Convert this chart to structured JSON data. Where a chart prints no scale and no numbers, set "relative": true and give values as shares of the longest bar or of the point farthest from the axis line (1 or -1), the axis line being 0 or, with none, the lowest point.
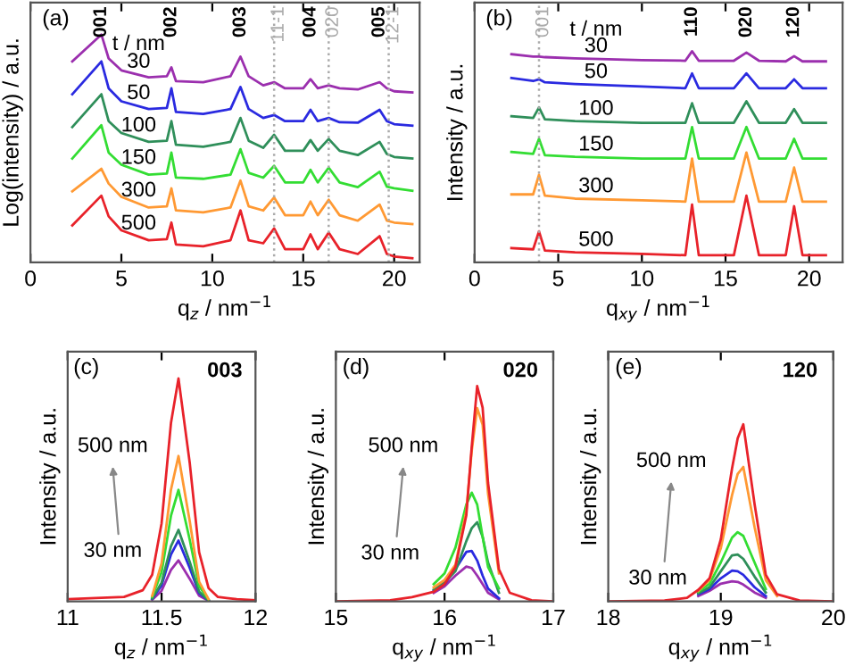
{
  "chart_data": [
    {
      "type": "line",
      "title": "(a)",
      "relative": true,
      "tick_labels": "x",
      "xlabel": "q$_{z}$ / nm$^{−1}$",
      "ylabel": "Log(intensity) / a.u.",
      "legend_title": "t / nm",
      "xlim": [
        0,
        21.4
      ],
      "xticks": [
        0,
        5,
        10,
        15,
        20
      ],
      "x": [
        2.3,
        3.9,
        4.3,
        5.0,
        6.5,
        7.5,
        7.75,
        8.0,
        9.5,
        11.0,
        11.55,
        12.0,
        12.8,
        13.4,
        14.0,
        15.0,
        15.4,
        15.8,
        16.4,
        17.0,
        18.0,
        19.2,
        19.6,
        20.0,
        21.0
      ],
      "series": [
        {
          "name": "30",
          "color": "#9b2fae",
          "values": [
            0.882,
            1.0,
            0.895,
            0.843,
            0.812,
            0.817,
            0.856,
            0.796,
            0.791,
            0.817,
            0.903,
            0.817,
            0.777,
            0.791,
            0.764,
            0.764,
            0.804,
            0.764,
            0.777,
            0.764,
            0.759,
            0.791,
            0.764,
            0.751,
            0.746
          ]
        },
        {
          "name": "50",
          "color": "#2a2ae0",
          "values": [
            0.738,
            0.882,
            0.764,
            0.707,
            0.673,
            0.678,
            0.764,
            0.66,
            0.652,
            0.673,
            0.77,
            0.673,
            0.634,
            0.647,
            0.62,
            0.62,
            0.67,
            0.62,
            0.634,
            0.615,
            0.613,
            0.67,
            0.62,
            0.607,
            0.6
          ]
        },
        {
          "name": "100",
          "color": "#2f8f5a",
          "values": [
            0.594,
            0.738,
            0.62,
            0.568,
            0.529,
            0.534,
            0.62,
            0.516,
            0.508,
            0.529,
            0.634,
            0.534,
            0.503,
            0.56,
            0.49,
            0.49,
            0.537,
            0.49,
            0.542,
            0.49,
            0.471,
            0.529,
            0.476,
            0.463,
            0.456
          ]
        },
        {
          "name": "150",
          "color": "#33dd33",
          "values": [
            0.456,
            0.602,
            0.482,
            0.429,
            0.385,
            0.39,
            0.482,
            0.372,
            0.367,
            0.385,
            0.497,
            0.393,
            0.372,
            0.424,
            0.351,
            0.351,
            0.406,
            0.351,
            0.416,
            0.351,
            0.33,
            0.398,
            0.332,
            0.325,
            0.314
          ]
        },
        {
          "name": "300",
          "color": "#ff9933",
          "values": [
            0.312,
            0.411,
            0.346,
            0.288,
            0.241,
            0.246,
            0.325,
            0.228,
            0.22,
            0.241,
            0.359,
            0.246,
            0.228,
            0.285,
            0.207,
            0.207,
            0.267,
            0.207,
            0.275,
            0.207,
            0.183,
            0.254,
            0.183,
            0.175,
            0.168
          ]
        },
        {
          "name": "500",
          "color": "#e8222a",
          "values": [
            0.162,
            0.293,
            0.202,
            0.141,
            0.097,
            0.102,
            0.175,
            0.079,
            0.071,
            0.097,
            0.228,
            0.097,
            0.084,
            0.149,
            0.058,
            0.058,
            0.123,
            0.058,
            0.131,
            0.058,
            0.037,
            0.115,
            0.037,
            0.026,
            0.018
          ]
        }
      ],
      "annotations": [
        "001",
        "002",
        "003",
        "11-1",
        "004",
        "020",
        "005",
        "12-1"
      ],
      "ref_lines": [
        {
          "axis": "x",
          "value": 13.4,
          "color": "#aaaaaa",
          "line_style": "dotted"
        },
        {
          "axis": "x",
          "value": 16.4,
          "color": "#aaaaaa",
          "line_style": "dotted"
        },
        {
          "axis": "x",
          "value": 19.7,
          "color": "#aaaaaa",
          "line_style": "dotted"
        }
      ]
    },
    {
      "type": "line",
      "title": "(b)",
      "relative": true,
      "tick_labels": "x",
      "xlabel": "q$_{xy}$ / nm$^{−1}$",
      "ylabel": "Intensity / a.u.",
      "legend_title": "t / nm",
      "xlim": [
        0,
        22
      ],
      "xticks": [
        0,
        5,
        10,
        15,
        20
      ],
      "x": [
        2.2,
        3.5,
        3.85,
        4.2,
        6.0,
        10.0,
        12.6,
        13.0,
        13.4,
        15.5,
        16.25,
        17.0,
        18.6,
        19.1,
        19.6,
        21.0
      ],
      "series": [
        {
          "name": "30",
          "color": "#9b2fae",
          "values": [
            0.986,
            0.975,
            0.975,
            0.972,
            0.966,
            0.958,
            0.955,
            1.0,
            0.955,
            0.955,
            0.994,
            0.955,
            0.952,
            0.977,
            0.952,
            0.952
          ]
        },
        {
          "name": "50",
          "color": "#2a2ae0",
          "values": [
            0.873,
            0.859,
            0.867,
            0.853,
            0.845,
            0.833,
            0.825,
            0.895,
            0.825,
            0.825,
            0.895,
            0.825,
            0.825,
            0.867,
            0.825,
            0.825
          ]
        },
        {
          "name": "100",
          "color": "#2f8f5a",
          "values": [
            0.692,
            0.684,
            0.734,
            0.678,
            0.669,
            0.661,
            0.661,
            0.754,
            0.661,
            0.661,
            0.763,
            0.661,
            0.661,
            0.726,
            0.661,
            0.661
          ]
        },
        {
          "name": "150",
          "color": "#33dd33",
          "values": [
            0.523,
            0.514,
            0.585,
            0.508,
            0.5,
            0.492,
            0.492,
            0.641,
            0.492,
            0.492,
            0.641,
            0.492,
            0.492,
            0.585,
            0.492,
            0.492
          ]
        },
        {
          "name": "300",
          "color": "#ff9933",
          "values": [
            0.322,
            0.322,
            0.415,
            0.316,
            0.302,
            0.294,
            0.288,
            0.492,
            0.288,
            0.288,
            0.52,
            0.288,
            0.288,
            0.449,
            0.288,
            0.288
          ]
        },
        {
          "name": "500",
          "color": "#e8222a",
          "values": [
            0.068,
            0.062,
            0.147,
            0.056,
            0.048,
            0.04,
            0.034,
            0.274,
            0.034,
            0.034,
            0.316,
            0.034,
            0.034,
            0.266,
            0.034,
            0.034
          ]
        }
      ],
      "annotations": [
        "001",
        "110",
        "020",
        "120"
      ],
      "ref_lines": [
        {
          "axis": "x",
          "value": 3.85,
          "color": "#aaaaaa",
          "line_style": "dotted"
        }
      ]
    },
    {
      "type": "line",
      "title": "(c)",
      "relative": true,
      "tick_labels": "x",
      "xlabel": "q$_{z}$ / nm$^{−1}$",
      "ylabel": "Intensity / a.u.",
      "xlim": [
        11,
        12
      ],
      "xticks": [
        11,
        11.5,
        12
      ],
      "x": [
        11.0,
        11.3,
        11.4,
        11.45,
        11.5,
        11.55,
        11.59,
        11.65,
        11.7,
        11.75,
        11.8,
        11.9,
        12.0
      ],
      "series": [
        {
          "color": "#9b2fae",
          "values": [
            null,
            null,
            null,
            0.007,
            0.048,
            0.141,
            0.184,
            0.101,
            0.025,
            0.003,
            null,
            null,
            null
          ]
        },
        {
          "color": "#2a2ae0",
          "values": [
            null,
            null,
            null,
            0.011,
            0.072,
            0.21,
            0.273,
            0.15,
            0.037,
            0.004,
            null,
            null,
            null
          ]
        },
        {
          "color": "#2f8f5a",
          "values": [
            null,
            null,
            null,
            0.013,
            0.084,
            0.247,
            0.321,
            0.177,
            0.043,
            0.005,
            null,
            null,
            null
          ]
        },
        {
          "color": "#33dd33",
          "values": [
            null,
            null,
            null,
            0.02,
            0.131,
            0.384,
            0.5,
            0.276,
            0.068,
            0.008,
            null,
            null,
            null
          ]
        },
        {
          "color": "#ff9933",
          "values": [
            null,
            null,
            null,
            0.025,
            0.171,
            0.501,
            0.652,
            0.359,
            0.088,
            0.01,
            null,
            null,
            null
          ]
        },
        {
          "color": "#e8222a",
          "values": [
            0.01,
            0.02,
            0.05,
            0.12,
            0.35,
            0.8,
            1.0,
            0.62,
            0.22,
            0.06,
            0.02,
            0.01,
            0.005
          ]
        }
      ],
      "annotations": [
        "003",
        "500 nm",
        "30 nm"
      ]
    },
    {
      "type": "line",
      "title": "(d)",
      "relative": true,
      "tick_labels": "x",
      "xlabel": "q$_{xy}$ / nm$^{−1}$",
      "ylabel": "Intensity / a.u.",
      "xlim": [
        15,
        17
      ],
      "xticks": [
        15,
        16,
        17
      ],
      "x": [
        15.0,
        15.5,
        15.7,
        15.9,
        16.0,
        16.1,
        16.2,
        16.25,
        16.3,
        16.35,
        16.4,
        16.5,
        16.6,
        16.8,
        17.0
      ],
      "series": [
        {
          "color": "#9b2fae",
          "values": [
            null,
            null,
            null,
            0.04,
            0.07,
            0.12,
            0.162,
            0.155,
            0.12,
            0.08,
            0.04,
            0.01,
            null,
            null,
            null
          ]
        },
        {
          "color": "#2a2ae0",
          "values": [
            null,
            null,
            null,
            0.05,
            0.08,
            0.15,
            0.23,
            0.234,
            0.19,
            0.12,
            0.06,
            0.015,
            null,
            null,
            null
          ]
        },
        {
          "color": "#2f8f5a",
          "values": [
            null,
            null,
            null,
            0.055,
            0.09,
            0.14,
            0.28,
            0.34,
            0.368,
            0.3,
            0.18,
            0.04,
            null,
            null,
            null
          ]
        },
        {
          "color": "#33dd33",
          "values": [
            null,
            null,
            null,
            0.08,
            0.13,
            0.25,
            0.45,
            0.505,
            0.45,
            0.3,
            0.16,
            0.06,
            null,
            null,
            null
          ]
        },
        {
          "color": "#ff9933",
          "values": [
            null,
            null,
            null,
            0.065,
            0.1,
            0.17,
            0.42,
            0.7,
            0.898,
            0.82,
            0.5,
            0.13,
            null,
            null,
            null
          ]
        },
        {
          "color": "#e8222a",
          "values": [
            0,
            0.005,
            0.02,
            0.045,
            0.08,
            0.16,
            0.4,
            0.72,
            1.0,
            0.9,
            0.55,
            0.15,
            0.04,
            0.005,
            0
          ]
        }
      ],
      "annotations": [
        "020",
        "500 nm",
        "30 nm"
      ]
    },
    {
      "type": "line",
      "title": "(e)",
      "relative": true,
      "tick_labels": "x",
      "xlabel": "q$_{xy}$ / nm$^{−1}$",
      "ylabel": "Intensity / a.u.",
      "xlim": [
        18,
        20
      ],
      "xticks": [
        18,
        19,
        20
      ],
      "x": [
        18.0,
        18.5,
        18.7,
        18.8,
        18.9,
        19.0,
        19.1,
        19.15,
        19.2,
        19.3,
        19.4,
        19.5,
        19.7,
        20.0
      ],
      "series": [
        {
          "color": "#9b2fae",
          "values": [
            null,
            null,
            null,
            0.03,
            0.06,
            0.1,
            0.114,
            0.11,
            0.095,
            0.05,
            0.02,
            null,
            null,
            null
          ]
        },
        {
          "color": "#2a2ae0",
          "values": [
            null,
            null,
            null,
            0.04,
            0.07,
            0.13,
            0.174,
            0.17,
            0.15,
            0.08,
            0.03,
            null,
            null,
            null
          ]
        },
        {
          "color": "#2f8f5a",
          "values": [
            null,
            null,
            null,
            0.045,
            0.08,
            0.17,
            0.26,
            0.265,
            0.24,
            0.14,
            0.05,
            null,
            null,
            null
          ]
        },
        {
          "color": "#33dd33",
          "values": [
            null,
            null,
            null,
            0.055,
            0.1,
            0.22,
            0.36,
            0.391,
            0.37,
            0.22,
            0.07,
            null,
            null,
            null
          ]
        },
        {
          "color": "#ff9933",
          "values": [
            null,
            null,
            null,
            0.06,
            0.12,
            0.3,
            0.6,
            0.72,
            0.759,
            0.42,
            0.12,
            0.03,
            null,
            null
          ]
        },
        {
          "color": "#e8222a",
          "values": [
            0,
            0.005,
            0.02,
            0.065,
            0.13,
            0.35,
            0.75,
            0.92,
            1.0,
            0.55,
            0.15,
            0.04,
            0.005,
            0
          ]
        }
      ],
      "annotations": [
        "120",
        "500 nm",
        "30 nm"
      ]
    }
  ]
}
